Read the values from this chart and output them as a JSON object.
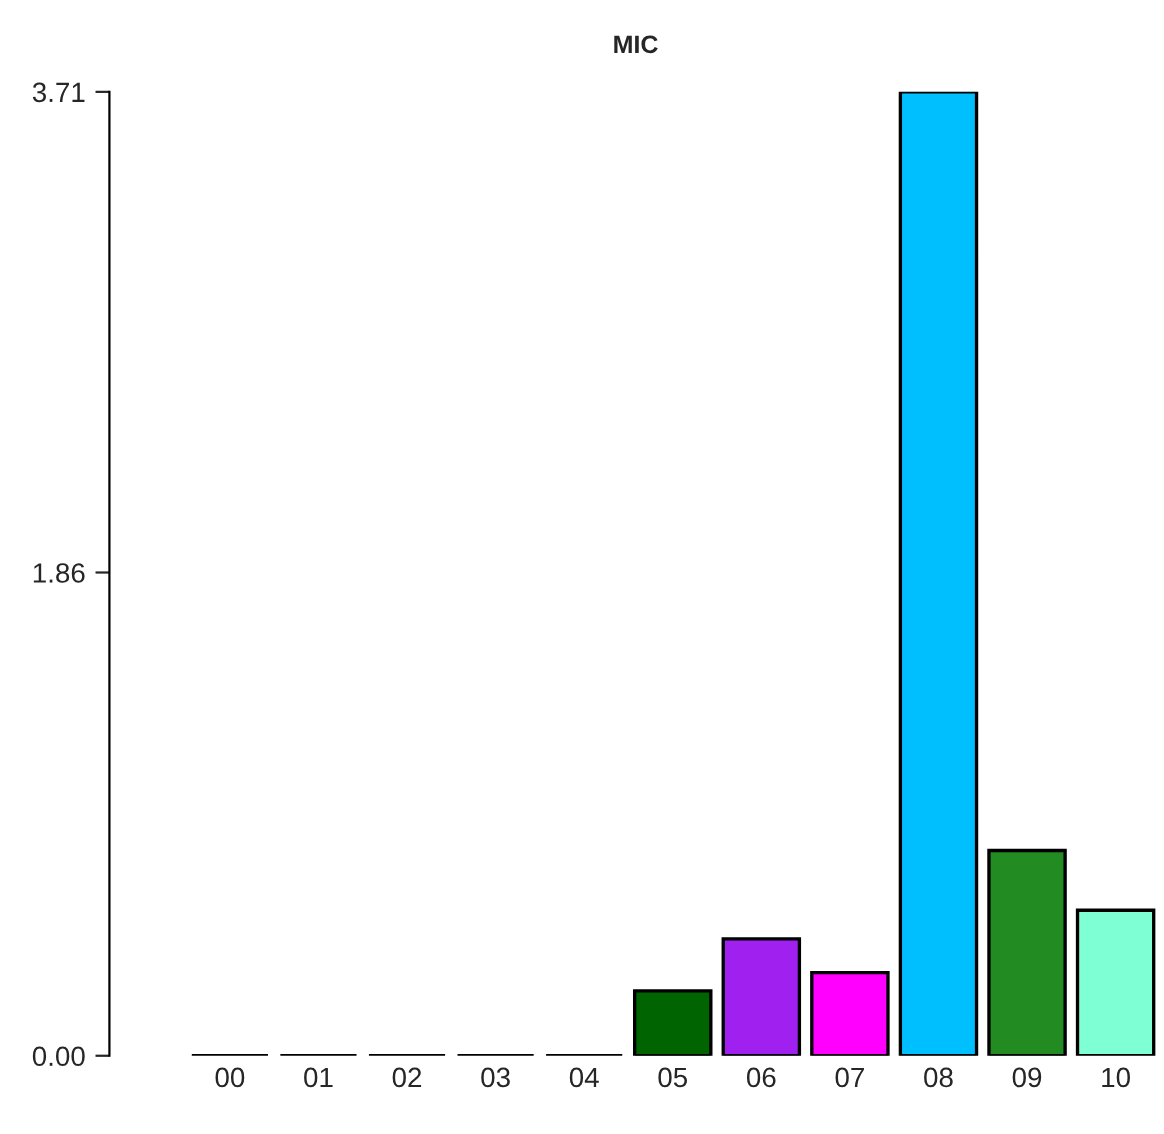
{
  "chart_data": {
    "type": "bar",
    "title": "MIC",
    "categories": [
      "00",
      "01",
      "02",
      "03",
      "04",
      "05",
      "06",
      "07",
      "08",
      "09",
      "10"
    ],
    "values": [
      0,
      0,
      0,
      0,
      0,
      0.25,
      0.45,
      0.32,
      3.71,
      0.79,
      0.56
    ],
    "colors": [
      "#000000",
      "#000000",
      "#000000",
      "#000000",
      "#000000",
      "#006400",
      "#a020f0",
      "#ff00ff",
      "#00bfff",
      "#228b22",
      "#7fffd4"
    ],
    "ylim": [
      0,
      3.71
    ],
    "yticks": [
      {
        "value": 0,
        "label": "0.00"
      },
      {
        "value": 1.86,
        "label": "1.86"
      },
      {
        "value": 3.71,
        "label": "3.71"
      }
    ],
    "grid": false,
    "legend": false
  }
}
